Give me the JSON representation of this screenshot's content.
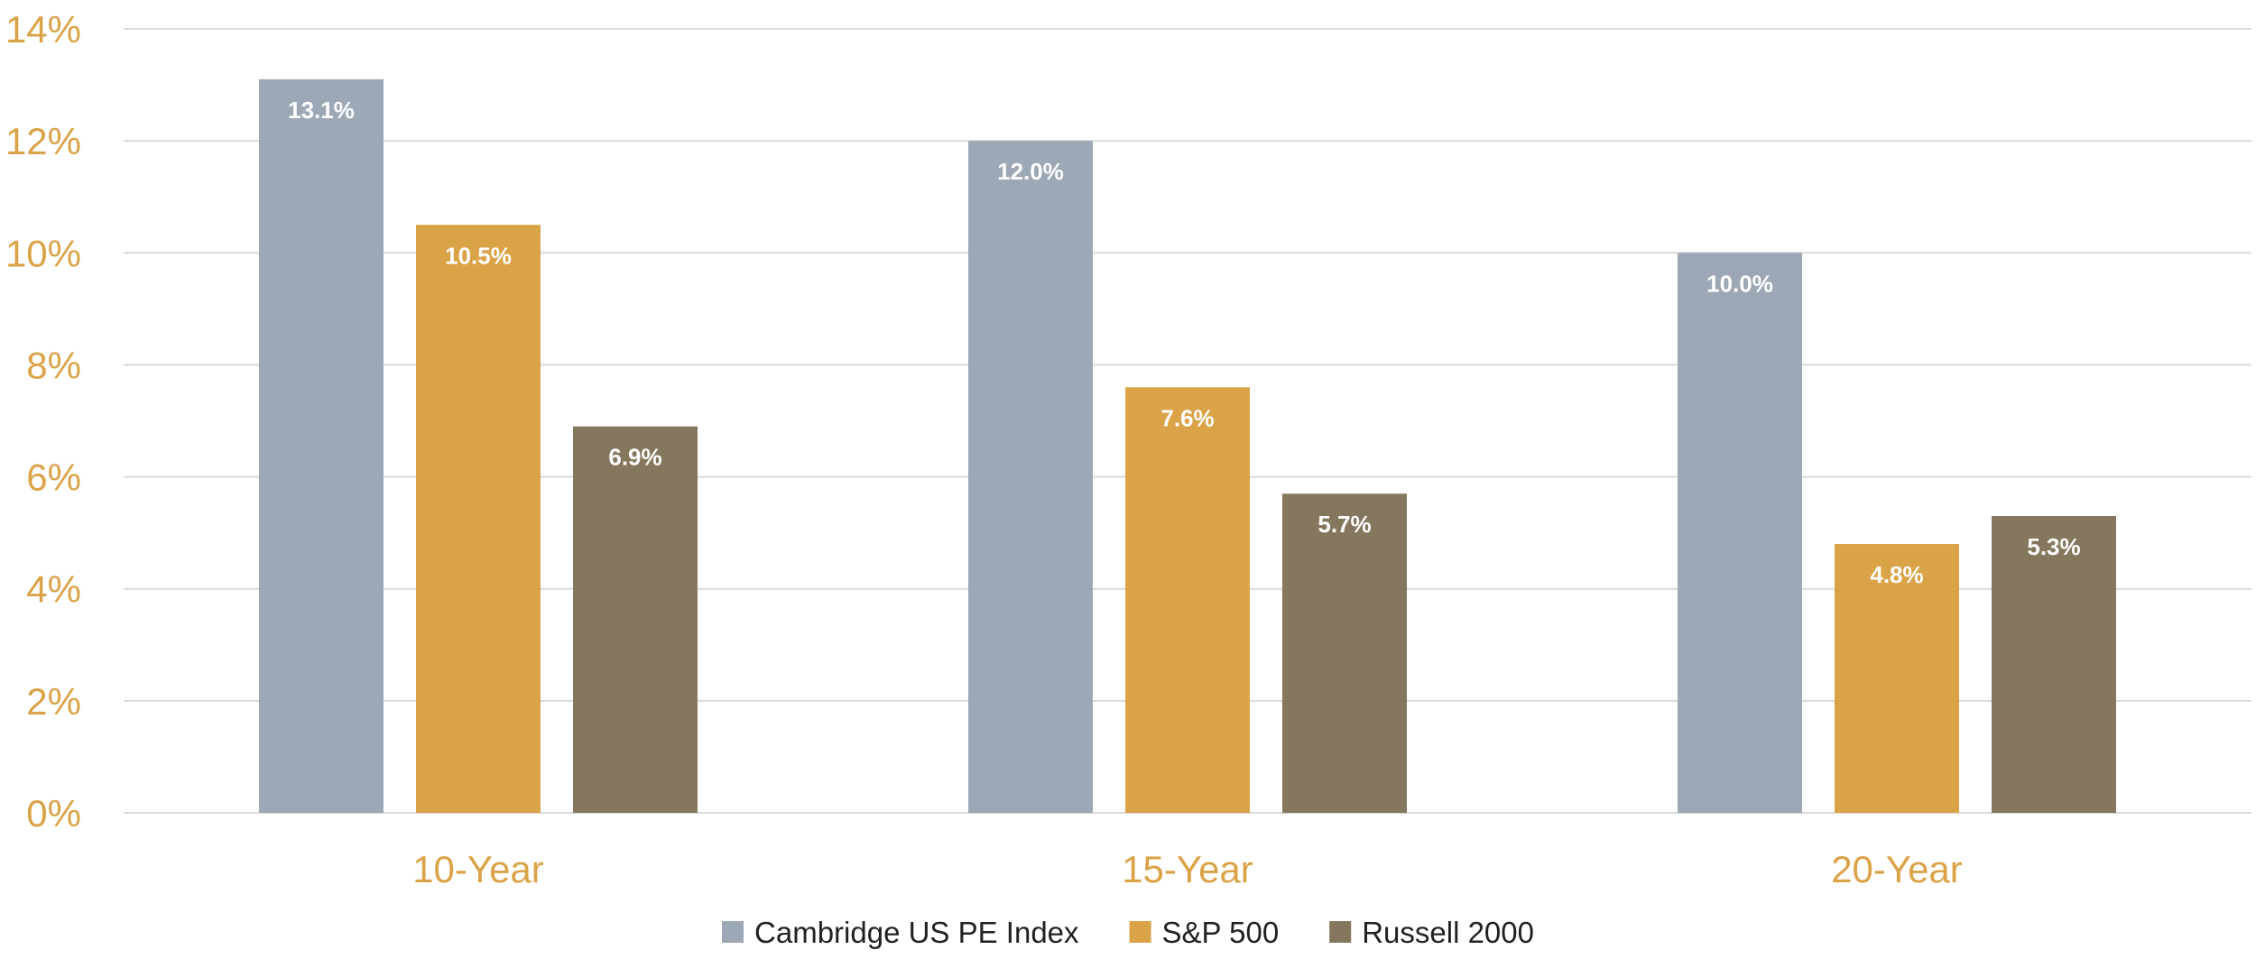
{
  "chart_data": {
    "type": "bar",
    "categories": [
      "10-Year",
      "15-Year",
      "20-Year"
    ],
    "series": [
      {
        "name": "Cambridge US PE Index",
        "color": "#9DA8B6",
        "values": [
          13.1,
          12.0,
          10.0
        ],
        "labels": [
          "13.1%",
          "12.0%",
          "10.0%"
        ]
      },
      {
        "name": "S&P 500",
        "color": "#DBA348",
        "values": [
          10.5,
          7.6,
          4.8
        ],
        "labels": [
          "10.5%",
          "7.6%",
          "4.8%"
        ]
      },
      {
        "name": "Russell 2000",
        "color": "#85775D",
        "values": [
          6.9,
          5.7,
          5.3
        ],
        "labels": [
          "6.9%",
          "5.7%",
          "5.3%"
        ]
      }
    ],
    "ylim": [
      0,
      14
    ],
    "yticks": [
      0,
      2,
      4,
      6,
      8,
      10,
      12,
      14
    ],
    "ytick_labels": [
      "0%",
      "2%",
      "4%",
      "6%",
      "8%",
      "10%",
      "12%",
      "14%"
    ],
    "grid": true,
    "legend_position": "bottom-center",
    "title": "",
    "xlabel": "",
    "ylabel": ""
  }
}
